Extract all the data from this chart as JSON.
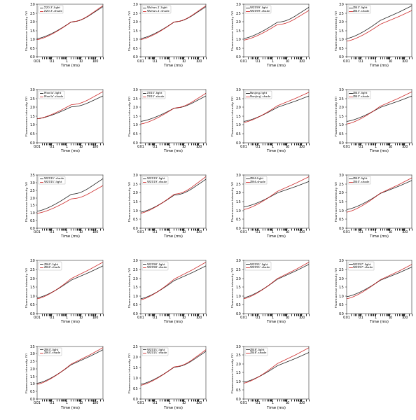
{
  "subplots": [
    {
      "label_light": "'Z20-3'-light",
      "label_shade": "'Z20-3'-shade",
      "row": 0,
      "col": 0,
      "ymax": 3.0,
      "has_dip": true,
      "b_above": true,
      "b_s": 0.35,
      "b_e": 0.95,
      "r_s": 0.33,
      "r_e": 0.97
    },
    {
      "label_light": "'Wuhan-1'-light",
      "label_shade": "'Wuhan-1'-shade",
      "row": 0,
      "col": 1,
      "ymax": 3.0,
      "has_dip": true,
      "b_above": true,
      "b_s": 0.35,
      "b_e": 0.95,
      "r_s": 0.33,
      "r_e": 0.97
    },
    {
      "label_light": "'WZ099'-light",
      "label_shade": "'WZ099'-shade",
      "row": 0,
      "col": 2,
      "ymax": 3.0,
      "has_dip": true,
      "b_above": true,
      "b_s": 0.35,
      "b_e": 0.94,
      "r_s": 0.32,
      "r_e": 0.88
    },
    {
      "label_light": "Z043'-light",
      "label_shade": "Z043'-shade",
      "row": 0,
      "col": 3,
      "ymax": 3.0,
      "has_dip": false,
      "b_above": false,
      "b_s": 0.35,
      "b_e": 0.97,
      "r_s": 0.3,
      "r_e": 0.88
    },
    {
      "label_light": "'Manila'-light",
      "label_shade": "'Manila'-shade",
      "row": 1,
      "col": 0,
      "ymax": 3.0,
      "has_dip": true,
      "b_above": false,
      "b_s": 0.45,
      "b_e": 0.88,
      "r_s": 0.45,
      "r_e": 0.96
    },
    {
      "label_light": "'Z015'-light",
      "label_shade": "'Z015'-shade",
      "row": 1,
      "col": 1,
      "ymax": 3.0,
      "has_dip": true,
      "b_above": false,
      "b_s": 0.4,
      "b_e": 0.88,
      "r_s": 0.35,
      "r_e": 0.93
    },
    {
      "label_light": "Nanjing-light",
      "label_shade": "'Nanjing'-shade",
      "row": 1,
      "col": 2,
      "ymax": 3.0,
      "has_dip": false,
      "b_above": false,
      "b_s": 0.4,
      "b_e": 0.88,
      "r_s": 0.38,
      "r_e": 0.95
    },
    {
      "label_light": "Z043'-light",
      "label_shade": "Z043'-shade",
      "row": 1,
      "col": 3,
      "ymax": 3.0,
      "has_dip": false,
      "b_above": false,
      "b_s": 0.4,
      "b_e": 0.88,
      "r_s": 0.35,
      "r_e": 0.96
    },
    {
      "label_light": "'WZ015'-shade",
      "label_shade": "'WZ015'-light",
      "row": 2,
      "col": 0,
      "ymax": 3.5,
      "has_dip": true,
      "b_above": true,
      "b_s": 0.32,
      "b_e": 0.93,
      "r_s": 0.28,
      "r_e": 0.8
    },
    {
      "label_light": "'WZ019'-light",
      "label_shade": "'WZ019'-shade",
      "row": 2,
      "col": 1,
      "ymax": 3.0,
      "has_dip": true,
      "b_above": false,
      "b_s": 0.3,
      "b_e": 0.92,
      "r_s": 0.28,
      "r_e": 0.97
    },
    {
      "label_light": "Z066-light",
      "label_shade": "Z066-shade",
      "row": 2,
      "col": 2,
      "ymax": 3.0,
      "has_dip": false,
      "b_above": false,
      "b_s": 0.4,
      "b_e": 0.88,
      "r_s": 0.35,
      "r_e": 0.97
    },
    {
      "label_light": "Z040'-light",
      "label_shade": "Z040'-shade",
      "row": 2,
      "col": 3,
      "ymax": 3.0,
      "has_dip": false,
      "b_above": false,
      "b_s": 0.35,
      "b_e": 0.9,
      "r_s": 0.3,
      "r_e": 0.95
    },
    {
      "label_light": "Z066'-light",
      "label_shade": "Z066'-shade",
      "row": 3,
      "col": 0,
      "ymax": 3.0,
      "has_dip": false,
      "b_above": false,
      "b_s": 0.3,
      "b_e": 0.9,
      "r_s": 0.28,
      "r_e": 0.97
    },
    {
      "label_light": "'WZ098'-light",
      "label_shade": "'WZ098'-shade",
      "row": 3,
      "col": 1,
      "ymax": 3.0,
      "has_dip": false,
      "b_above": false,
      "b_s": 0.28,
      "b_e": 0.9,
      "r_s": 0.26,
      "r_e": 0.97
    },
    {
      "label_light": "'WZ091'-light",
      "label_shade": "'WZ091'-shade",
      "row": 3,
      "col": 2,
      "ymax": 3.0,
      "has_dip": false,
      "b_above": false,
      "b_s": 0.3,
      "b_e": 0.93,
      "r_s": 0.28,
      "r_e": 0.97
    },
    {
      "label_light": "'WZ097'-light",
      "label_shade": "'WZ097'-shade",
      "row": 3,
      "col": 3,
      "ymax": 3.0,
      "has_dip": false,
      "b_above": false,
      "b_s": 0.32,
      "b_e": 0.88,
      "r_s": 0.28,
      "r_e": 0.93
    },
    {
      "label_light": "Z064'-light",
      "label_shade": "Z064'-shade",
      "row": 4,
      "col": 0,
      "ymax": 3.5,
      "has_dip": false,
      "b_above": false,
      "b_s": 0.3,
      "b_e": 0.93,
      "r_s": 0.28,
      "r_e": 0.97
    },
    {
      "label_light": "'WZ015'-light",
      "label_shade": "'WZ015'-shade",
      "row": 4,
      "col": 1,
      "ymax": 2.5,
      "has_dip": true,
      "b_above": false,
      "b_s": 0.28,
      "b_e": 0.9,
      "r_s": 0.26,
      "r_e": 0.93
    },
    {
      "label_light": "Z048'-light",
      "label_shade": "Z048'-shade",
      "row": 4,
      "col": 2,
      "ymax": 3.0,
      "has_dip": false,
      "b_above": false,
      "b_s": 0.32,
      "b_e": 0.88,
      "r_s": 0.3,
      "r_e": 0.97
    }
  ],
  "color_light": "#1a1a1a",
  "color_shade": "#cc2222",
  "xlabel": "Time (ms)",
  "ylabel": "Fluorescence intensity (V)",
  "t_o": 0.01,
  "t_j": 2.0,
  "t_i": 30.0,
  "t_p": 300.0
}
